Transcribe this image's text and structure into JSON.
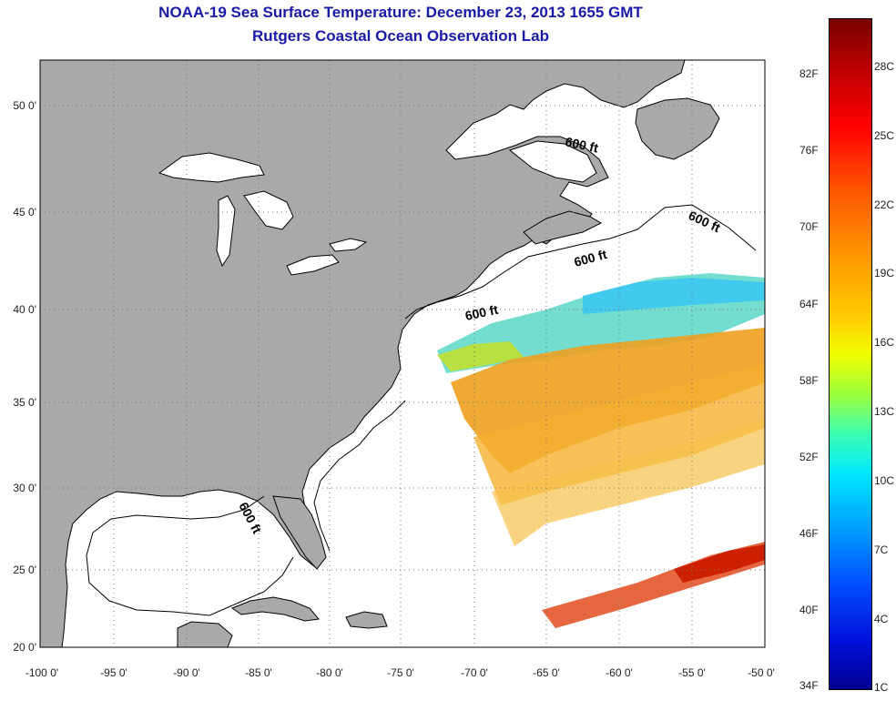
{
  "title": "NOAA-19 Sea Surface Temperature:  December 23, 2013 1655 GMT",
  "subtitle": "Rutgers Coastal Ocean Observation Lab",
  "lat_ticks": [
    "50 0'",
    "45 0'",
    "40 0'",
    "35 0'",
    "30 0'",
    "25 0'",
    "20 0'"
  ],
  "lon_ticks": [
    "-100 0'",
    "-95 0'",
    "-90 0'",
    "-85 0'",
    "-80 0'",
    "-75 0'",
    "-70 0'",
    "-65 0'",
    "-60 0'",
    "-55 0'",
    "-50 0'"
  ],
  "contour_labels": [
    "600 ft",
    "600 ft",
    "600 ft",
    "600 ft",
    "600 ft"
  ],
  "colorbar": {
    "fahrenheit": [
      "82F",
      "76F",
      "70F",
      "64F",
      "58F",
      "52F",
      "46F",
      "40F",
      "34F"
    ],
    "celsius": [
      "28C",
      "25C",
      "22C",
      "19C",
      "16C",
      "13C",
      "10C",
      "7C",
      "4C",
      "1C"
    ]
  },
  "colors": {
    "title": "#1a1aa8",
    "land": "#a9a9a9",
    "ocean": "#ffffff"
  }
}
